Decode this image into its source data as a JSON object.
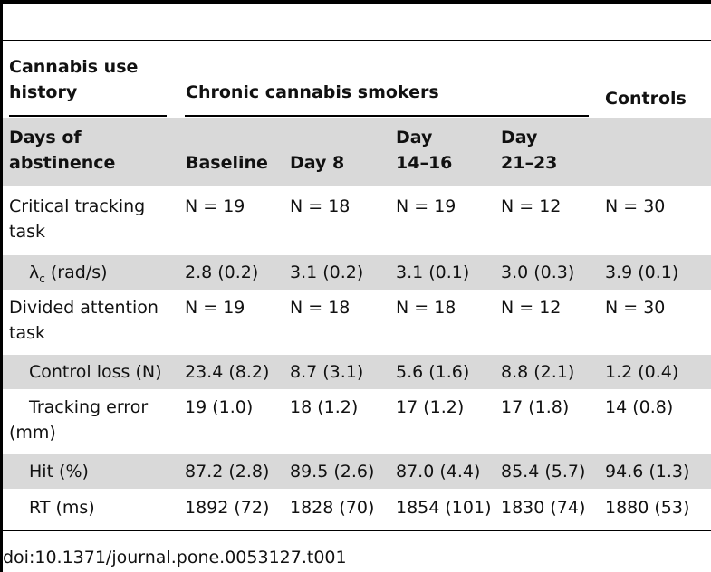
{
  "table": {
    "group_header": {
      "history_label": "Cannabis use history",
      "smokers_label": "Chronic cannabis smokers",
      "controls_label": "Controls"
    },
    "column_header": {
      "first": "Days of abstinence",
      "baseline": "Baseline",
      "day8": "Day 8",
      "day14": "Day 14–16",
      "day21": "Day 21–23"
    },
    "rows": [
      {
        "label": "Critical tracking task",
        "baseline": "N = 19",
        "day8": "N = 18",
        "day14": "N = 19",
        "day21": "N = 12",
        "controls": "N = 30"
      },
      {
        "label_symbol": "λ",
        "label_sub": "c",
        "label_rest": " (rad/s)",
        "baseline": "2.8 (0.2)",
        "day8": "3.1 (0.2)",
        "day14": "3.1 (0.1)",
        "day21": "3.0 (0.3)",
        "controls": "3.9 (0.1)"
      },
      {
        "label": "Divided attention task",
        "baseline": "N = 19",
        "day8": "N = 18",
        "day14": "N = 18",
        "day21": "N = 12",
        "controls": "N = 30"
      },
      {
        "label": "Control loss (N)",
        "baseline": "23.4 (8.2)",
        "day8": "8.7 (3.1)",
        "day14": "5.6 (1.6)",
        "day21": "8.8 (2.1)",
        "controls": "1.2 (0.4)"
      },
      {
        "label": "Tracking error (mm)",
        "baseline": "19 (1.0)",
        "day8": "18 (1.2)",
        "day14": "17 (1.2)",
        "day21": "17 (1.8)",
        "controls": "14 (0.8)"
      },
      {
        "label": "Hit (%)",
        "baseline": "87.2 (2.8)",
        "day8": "89.5 (2.6)",
        "day14": "87.0 (4.4)",
        "day21": "85.4 (5.7)",
        "controls": "94.6 (1.3)"
      },
      {
        "label": "RT (ms)",
        "baseline": "1892 (72)",
        "day8": "1828 (70)",
        "day14": "1854 (101)",
        "day21": "1830 (74)",
        "controls": "1880 (53)"
      }
    ]
  },
  "caption": "doi:10.1371/journal.pone.0053127.t001",
  "colors": {
    "band": "#d9d9d9",
    "rule": "#000000"
  }
}
